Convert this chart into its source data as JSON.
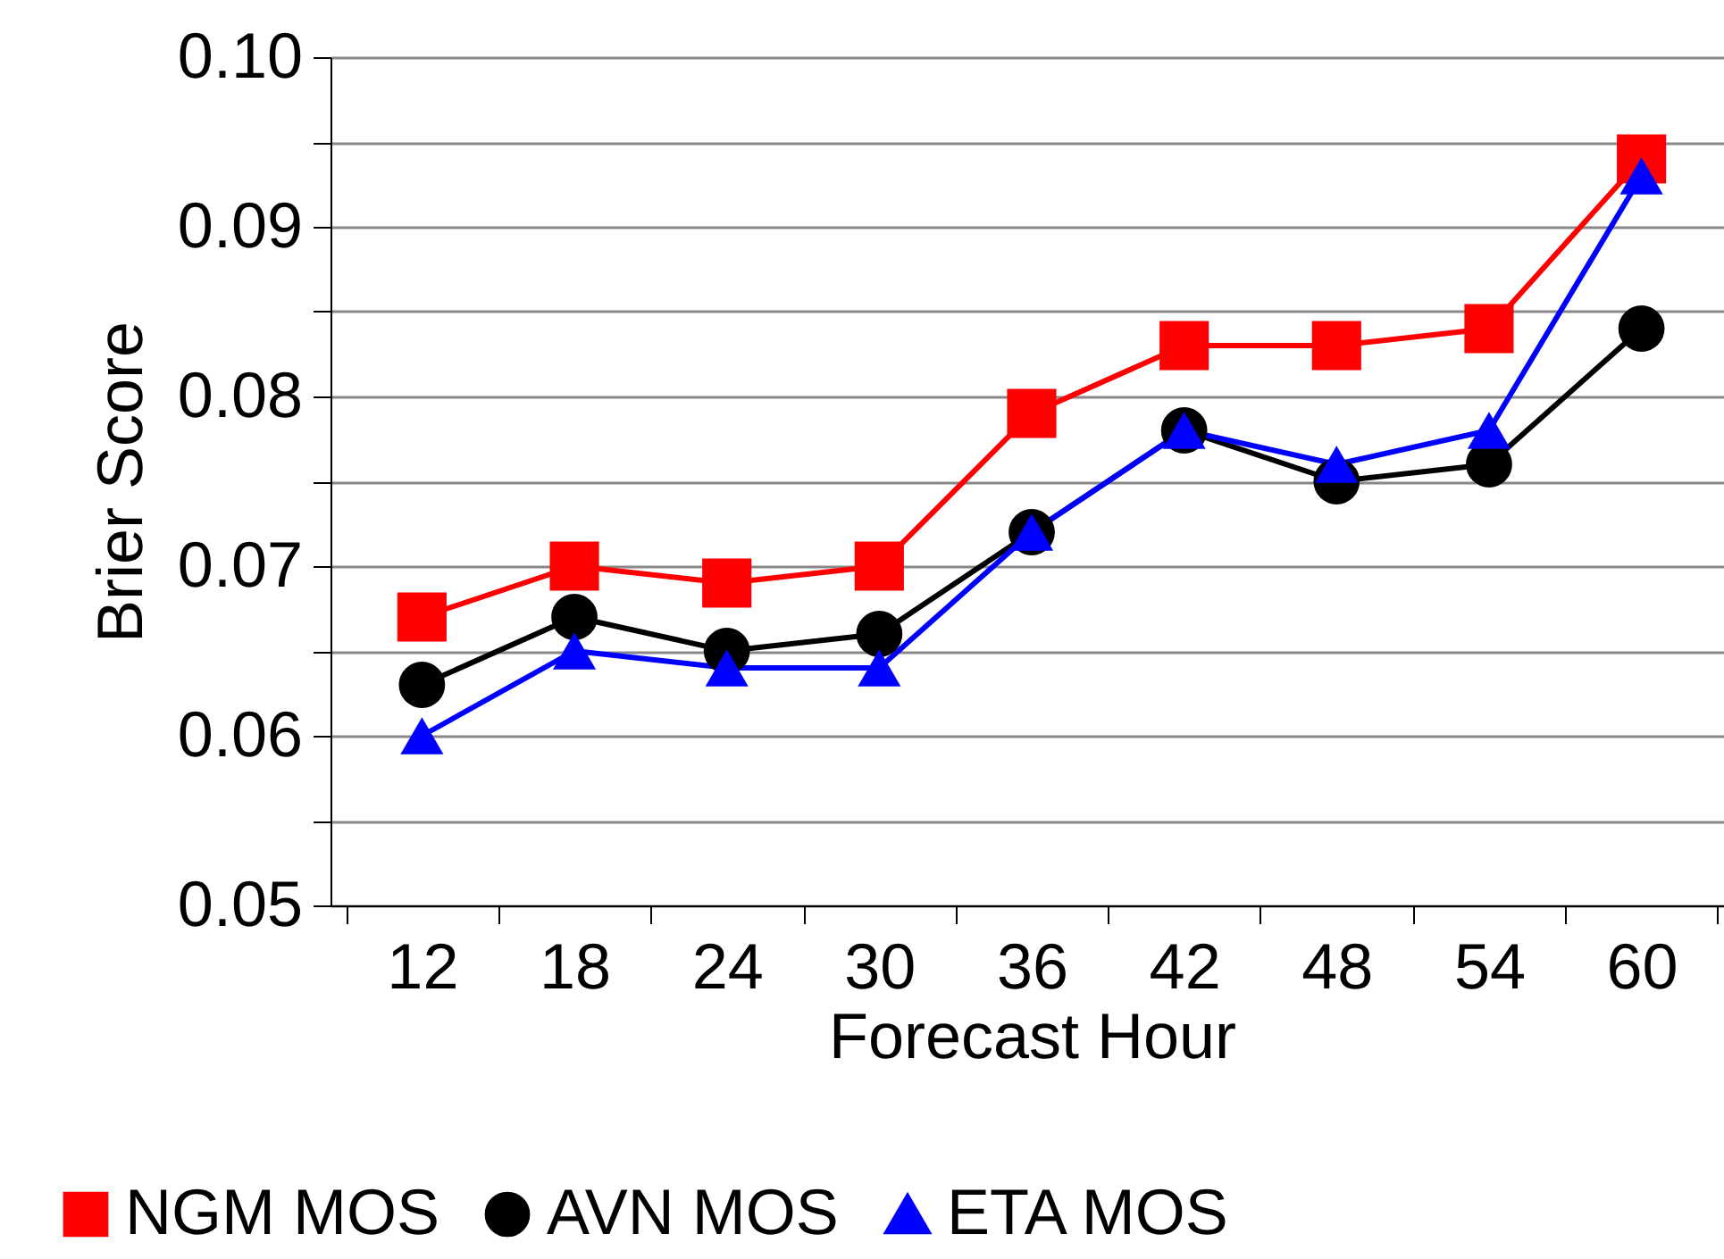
{
  "chart_data": {
    "type": "line",
    "xlabel": "Forecast Hour",
    "ylabel": "Brier Score",
    "categories": [
      "12",
      "18",
      "24",
      "30",
      "36",
      "42",
      "48",
      "54",
      "60"
    ],
    "ylim": [
      0.05,
      0.1
    ],
    "yticks": [
      0.05,
      {
        "value": 0.055,
        "label": null
      },
      0.06,
      {
        "value": 0.065,
        "label": null
      },
      0.07,
      {
        "value": 0.075,
        "label": null
      },
      0.08,
      {
        "value": 0.085,
        "label": null
      },
      0.09,
      {
        "value": 0.095,
        "label": null
      },
      {
        "value": 0.1,
        "label": "0.10"
      }
    ],
    "grid": "y",
    "legend": "bottom",
    "series": [
      {
        "name": "NGM MOS",
        "color": "#ff0000",
        "marker": "square",
        "values": [
          0.067,
          0.07,
          0.069,
          0.07,
          0.079,
          0.083,
          0.083,
          0.084,
          0.094
        ]
      },
      {
        "name": "AVN MOS",
        "color": "#000000",
        "marker": "circle",
        "values": [
          0.063,
          0.067,
          0.065,
          0.066,
          0.072,
          0.078,
          0.075,
          0.076,
          0.084
        ]
      },
      {
        "name": "ETA MOS",
        "color": "#0000ff",
        "marker": "triangle",
        "values": [
          0.06,
          0.065,
          0.064,
          0.064,
          0.072,
          0.078,
          0.076,
          0.078,
          0.093
        ]
      }
    ]
  }
}
